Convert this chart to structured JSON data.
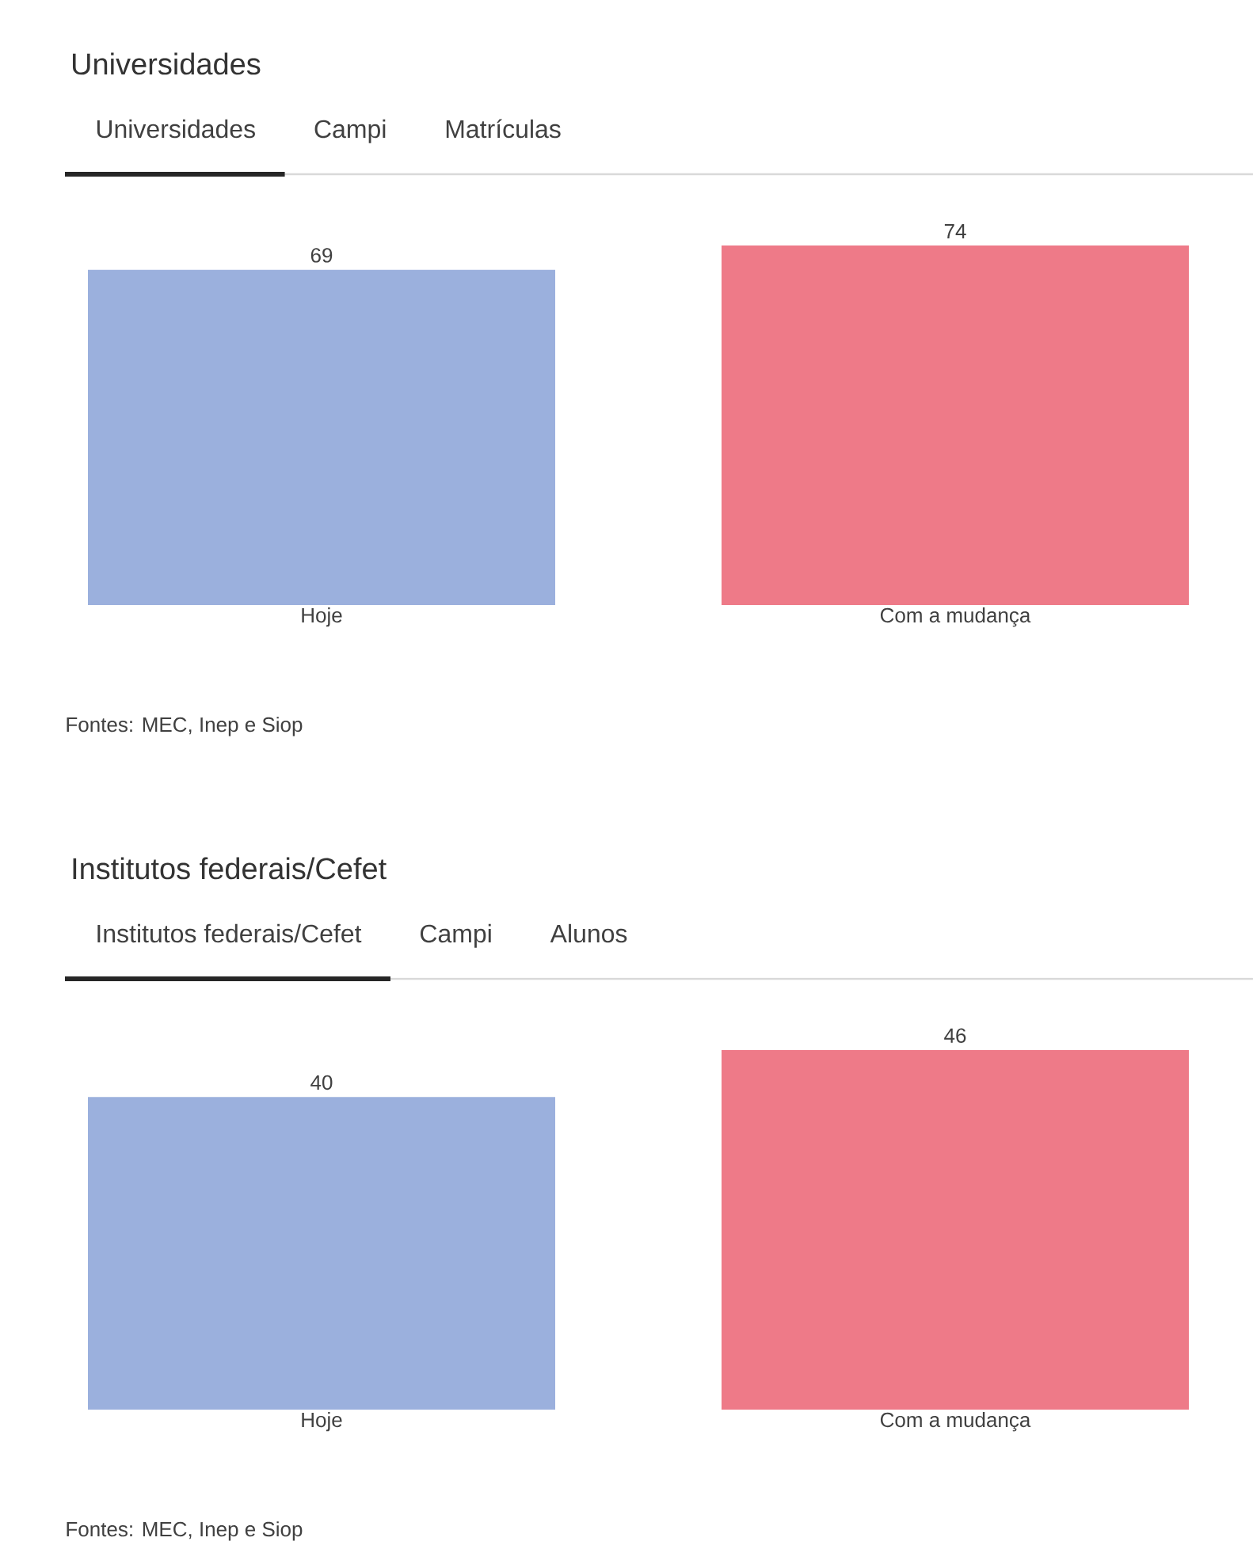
{
  "chart_data": [
    {
      "type": "bar",
      "title": "Universidades",
      "categories": [
        "Hoje",
        "Com a mudança"
      ],
      "values": [
        69,
        74
      ],
      "colors": [
        "#9bb0dd",
        "#ee7a88"
      ],
      "data_labels": true,
      "annotations": [
        "Universidades",
        "Campi",
        "Matrículas",
        "Fontes: MEC, Inep e Siop"
      ]
    },
    {
      "type": "bar",
      "title": "Institutos federais/Cefet",
      "categories": [
        "Hoje",
        "Com a mudança"
      ],
      "values": [
        40,
        46
      ],
      "colors": [
        "#9bb0dd",
        "#ee7a88"
      ],
      "data_labels": true,
      "annotations": [
        "Institutos federais/Cefet",
        "Campi",
        "Alunos",
        "Fontes: MEC, Inep e Siop"
      ]
    }
  ]
}
